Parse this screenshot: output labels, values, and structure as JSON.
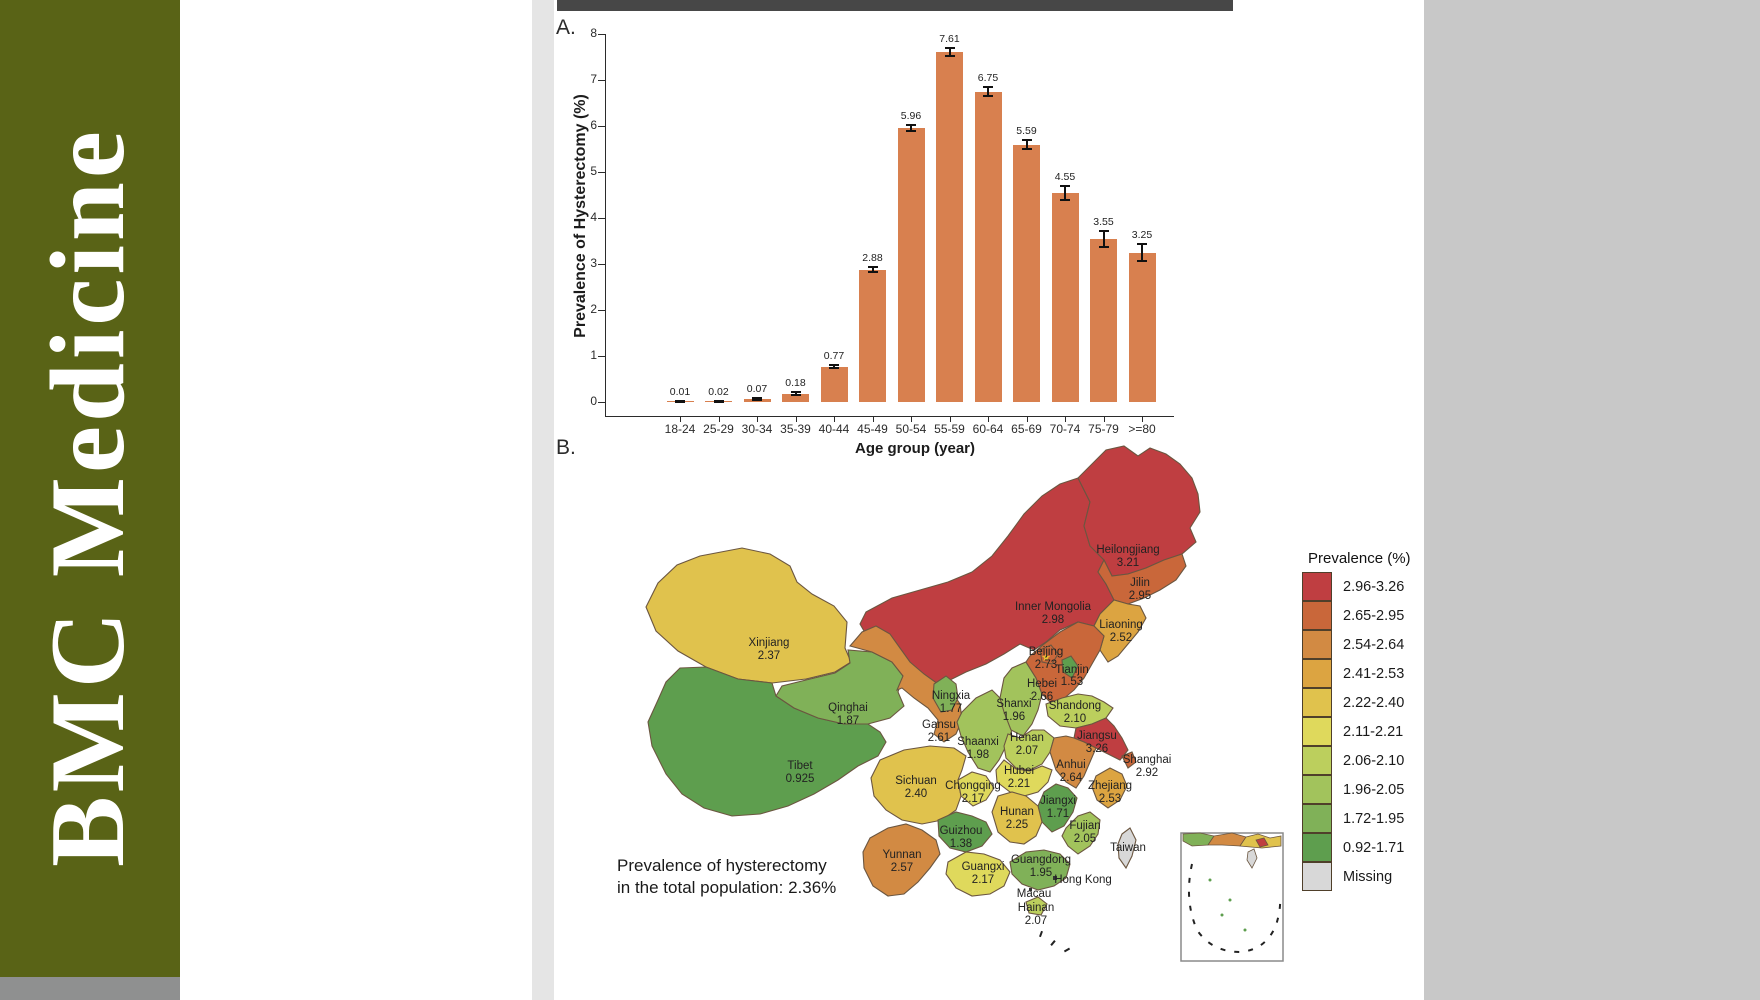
{
  "journal_name": "BMC Medicine",
  "panels": {
    "a_label": "A.",
    "b_label": "B."
  },
  "chart_data": [
    {
      "type": "bar",
      "title": "",
      "xlabel": "Age group (year)",
      "ylabel": "Prevalence of Hysterectomy (%)",
      "ylim": [
        0,
        8
      ],
      "yticks": [
        0,
        1,
        2,
        3,
        4,
        5,
        6,
        7,
        8
      ],
      "grid": false,
      "bar_color": "#d8804f",
      "categories": [
        "18-24",
        "25-29",
        "30-34",
        "35-39",
        "40-44",
        "45-49",
        "50-54",
        "55-59",
        "60-64",
        "65-69",
        "70-74",
        "75-79",
        ">=80"
      ],
      "values": [
        0.01,
        0.02,
        0.07,
        0.18,
        0.77,
        2.88,
        5.96,
        7.61,
        6.75,
        5.59,
        4.55,
        3.55,
        3.25
      ],
      "errors": [
        0.01,
        0.01,
        0.02,
        0.03,
        0.04,
        0.05,
        0.07,
        0.09,
        0.09,
        0.1,
        0.15,
        0.17,
        0.19
      ]
    },
    {
      "type": "choropleth",
      "region": "China provinces",
      "legend_title": "Prevalence (%)",
      "legend_position": "right",
      "missing_label": "Missing",
      "missing_color": "#d8d8d8",
      "annotation_line1": "Prevalence of hysterectomy",
      "annotation_line2": "in the total population: 2.36%",
      "bins": [
        {
          "label": "2.96-3.26",
          "min": 2.96,
          "max": 3.26,
          "color": "#bf3e41"
        },
        {
          "label": "2.65-2.95",
          "min": 2.65,
          "max": 2.95,
          "color": "#c9673a"
        },
        {
          "label": "2.54-2.64",
          "min": 2.54,
          "max": 2.64,
          "color": "#d28a43"
        },
        {
          "label": "2.41-2.53",
          "min": 2.41,
          "max": 2.53,
          "color": "#dca441"
        },
        {
          "label": "2.22-2.40",
          "min": 2.22,
          "max": 2.4,
          "color": "#e0c24d"
        },
        {
          "label": "2.11-2.21",
          "min": 2.11,
          "max": 2.21,
          "color": "#dfd95c"
        },
        {
          "label": "2.06-2.10",
          "min": 2.06,
          "max": 2.1,
          "color": "#bccf5d"
        },
        {
          "label": "1.96-2.05",
          "min": 1.96,
          "max": 2.05,
          "color": "#a2c35c"
        },
        {
          "label": "1.72-1.95",
          "min": 1.72,
          "max": 1.95,
          "color": "#80b158"
        },
        {
          "label": "0.92-1.71",
          "min": 0.92,
          "max": 1.71,
          "color": "#5e9e4e"
        }
      ],
      "provinces": [
        {
          "id": "heilongjiang",
          "name": "Heilongjiang",
          "value": 3.21,
          "value_label": "3.21"
        },
        {
          "id": "jilin",
          "name": "Jilin",
          "value": 2.95,
          "value_label": "2.95"
        },
        {
          "id": "liaoning",
          "name": "Liaoning",
          "value": 2.52,
          "value_label": "2.52"
        },
        {
          "id": "inner_mongolia",
          "name": "Inner Mongolia",
          "value": 2.98,
          "value_label": "2.98"
        },
        {
          "id": "xinjiang",
          "name": "Xinjiang",
          "value": 2.37,
          "value_label": "2.37"
        },
        {
          "id": "beijing",
          "name": "Beijing",
          "value": 2.73,
          "value_label": "2.73"
        },
        {
          "id": "tianjin",
          "name": "Tianjin",
          "value": 1.53,
          "value_label": "1.53"
        },
        {
          "id": "hebei",
          "name": "Hebei",
          "value": 2.66,
          "value_label": "2.66"
        },
        {
          "id": "ningxia",
          "name": "Ningxia",
          "value": 1.77,
          "value_label": "1.77"
        },
        {
          "id": "shanxi",
          "name": "Shanxi",
          "value": 1.96,
          "value_label": "1.96"
        },
        {
          "id": "shandong",
          "name": "Shandong",
          "value": 2.1,
          "value_label": "2.10"
        },
        {
          "id": "qinghai",
          "name": "Qinghai",
          "value": 1.87,
          "value_label": "1.87"
        },
        {
          "id": "gansu",
          "name": "Gansu",
          "value": 2.61,
          "value_label": "2.61"
        },
        {
          "id": "shaanxi",
          "name": "Shaanxi",
          "value": 1.98,
          "value_label": "1.98"
        },
        {
          "id": "henan",
          "name": "Henan",
          "value": 2.07,
          "value_label": "2.07"
        },
        {
          "id": "jiangsu",
          "name": "Jiangsu",
          "value": 3.26,
          "value_label": "3.26"
        },
        {
          "id": "tibet",
          "name": "Tibet",
          "value": 0.925,
          "value_label": "0.925"
        },
        {
          "id": "anhui",
          "name": "Anhui",
          "value": 2.64,
          "value_label": "2.64"
        },
        {
          "id": "shanghai",
          "name": "Shanghai",
          "value": 2.92,
          "value_label": "2.92"
        },
        {
          "id": "sichuan",
          "name": "Sichuan",
          "value": 2.4,
          "value_label": "2.40"
        },
        {
          "id": "hubei",
          "name": "Hubei",
          "value": 2.21,
          "value_label": "2.21"
        },
        {
          "id": "chongqing",
          "name": "Chongqing",
          "value": 2.17,
          "value_label": "2.17"
        },
        {
          "id": "zhejiang",
          "name": "Zhejiang",
          "value": 2.53,
          "value_label": "2.53"
        },
        {
          "id": "hunan",
          "name": "Hunan",
          "value": 2.25,
          "value_label": "2.25"
        },
        {
          "id": "jiangxi",
          "name": "Jiangxi",
          "value": 1.71,
          "value_label": "1.71"
        },
        {
          "id": "guizhou",
          "name": "Guizhou",
          "value": 1.38,
          "value_label": "1.38"
        },
        {
          "id": "fujian",
          "name": "Fujian",
          "value": 2.05,
          "value_label": "2.05"
        },
        {
          "id": "yunnan",
          "name": "Yunnan",
          "value": 2.57,
          "value_label": "2.57"
        },
        {
          "id": "guangxi",
          "name": "Guangxi",
          "value": 2.17,
          "value_label": "2.17"
        },
        {
          "id": "guangdong",
          "name": "Guangdong",
          "value": 1.95,
          "value_label": "1.95"
        },
        {
          "id": "hainan",
          "name": "Hainan",
          "value": 2.07,
          "value_label": "2.07"
        },
        {
          "id": "taiwan",
          "name": "Taiwan",
          "value": null,
          "value_label": ""
        },
        {
          "id": "hong_kong",
          "name": "Hong Kong",
          "value": null,
          "value_label": ""
        },
        {
          "id": "macau",
          "name": "Macau",
          "value": null,
          "value_label": ""
        }
      ]
    }
  ]
}
